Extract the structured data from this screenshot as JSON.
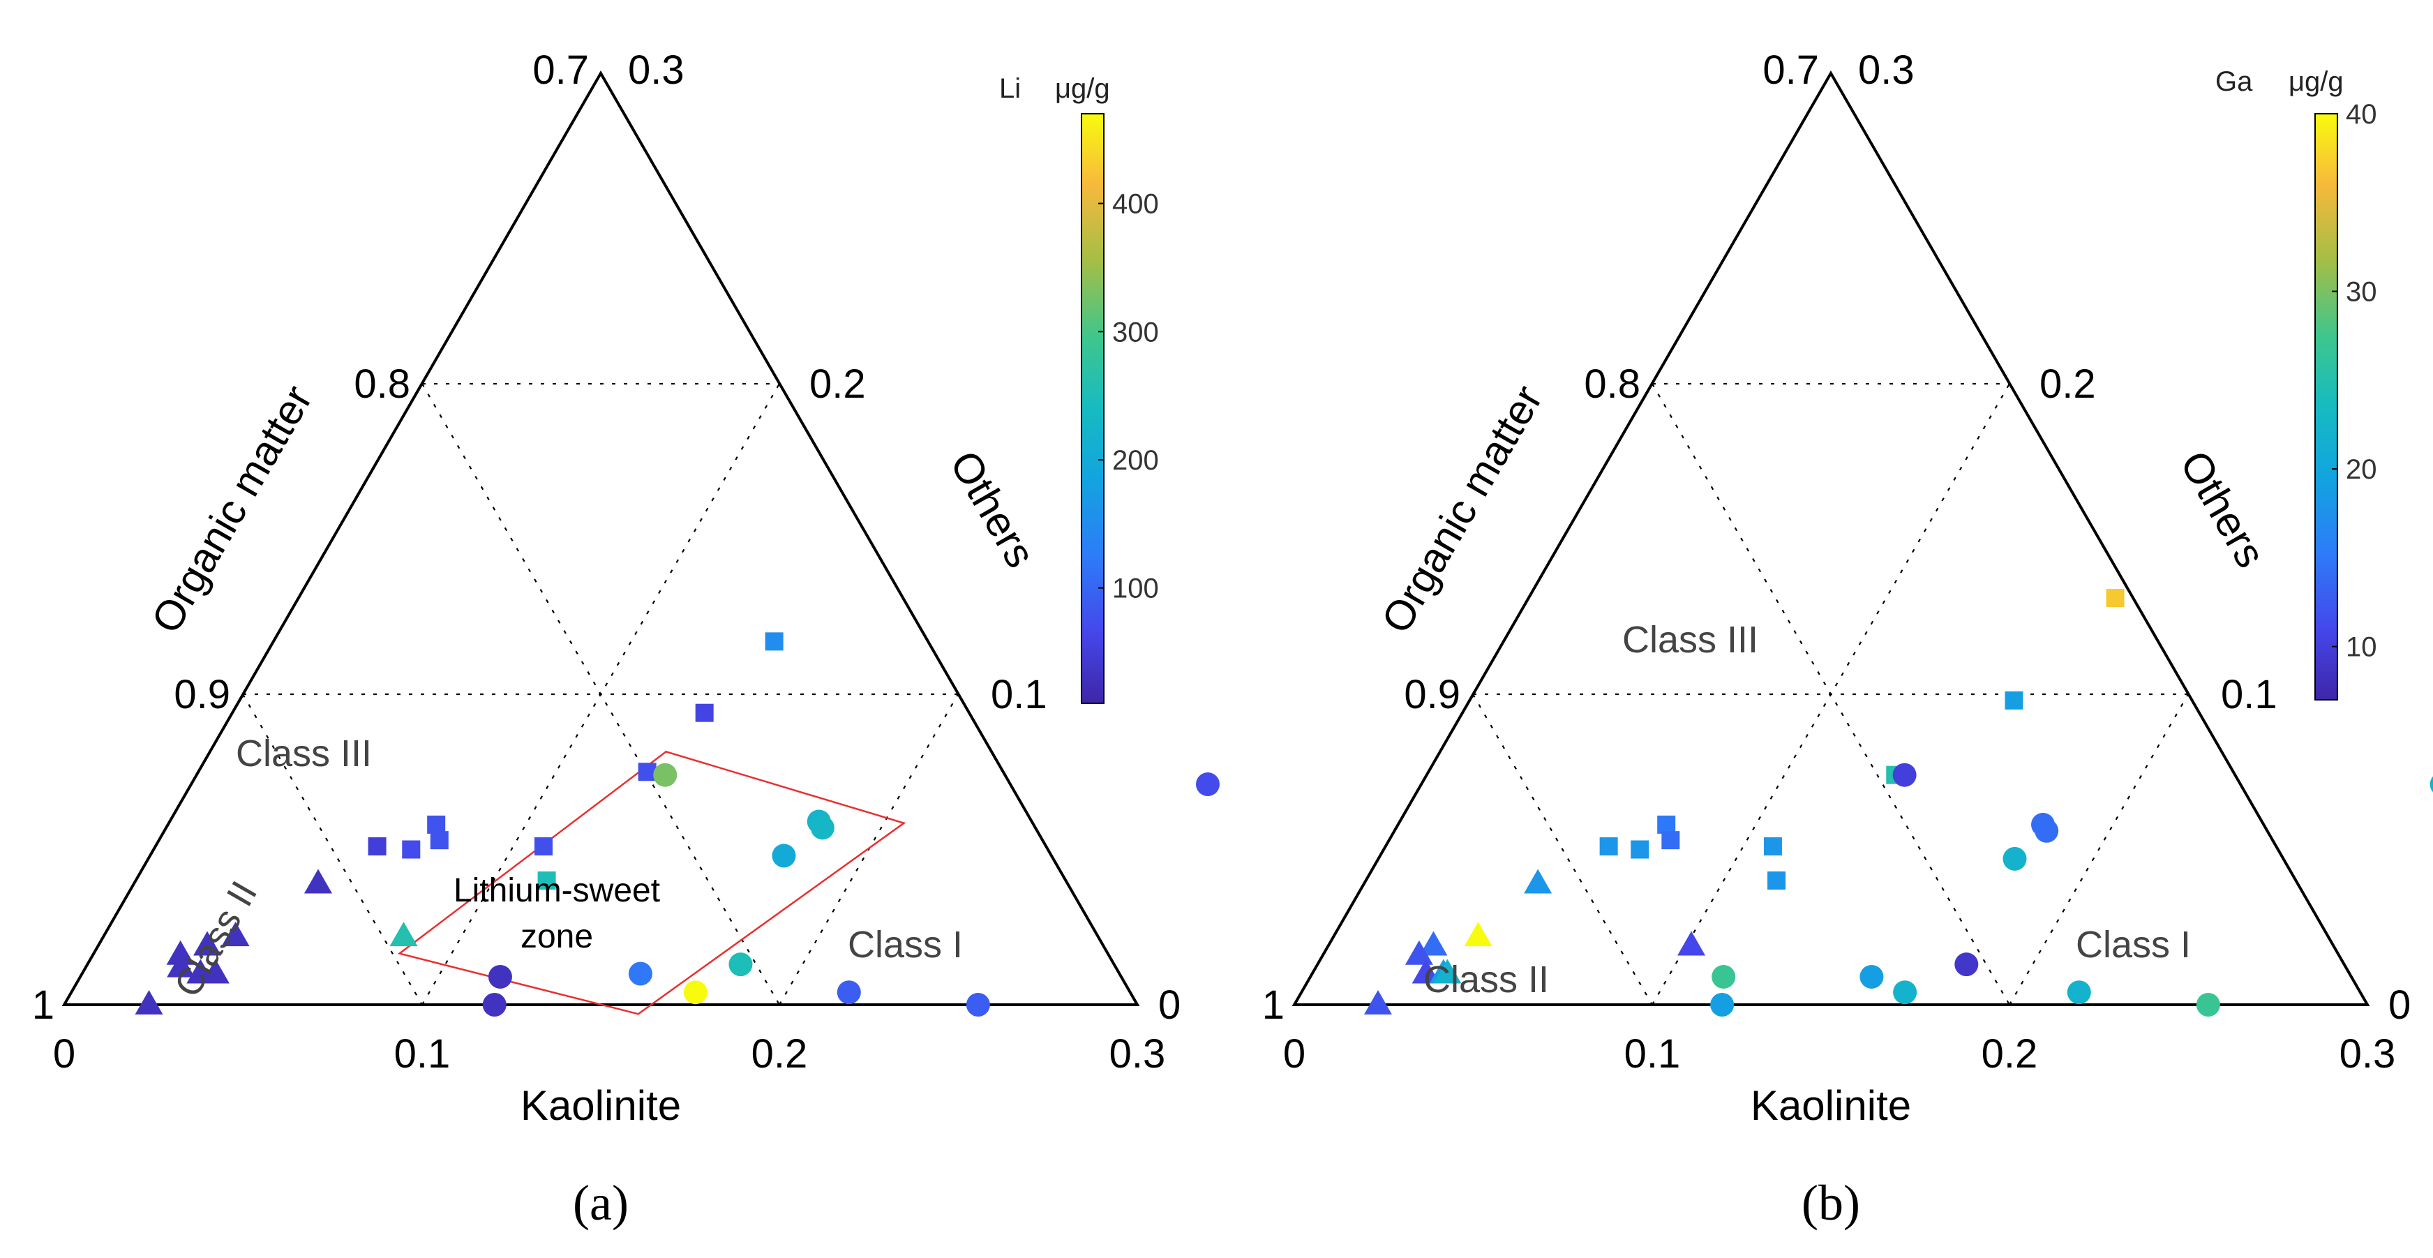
{
  "chart_data": [
    {
      "type": "scatter",
      "subtype": "ternary",
      "panel_label": "(a)",
      "axes": {
        "bottom": {
          "label": "Kaolinite",
          "ticks": [
            "0",
            "0.1",
            "0.2",
            "0.3"
          ]
        },
        "left": {
          "label": "Organic matter",
          "ticks": [
            "1",
            "0.9",
            "0.8",
            "0.7"
          ]
        },
        "right": {
          "label": "Others",
          "ticks": [
            "0",
            "0.1",
            "0.2",
            "0.3"
          ]
        }
      },
      "colorbar": {
        "element": "Li",
        "unit": "μg/g",
        "min": 10,
        "max": 470,
        "ticks": [
          100,
          200,
          300,
          400
        ]
      },
      "classes": [
        {
          "label": "Class I",
          "x": 0.24,
          "y": 0.018
        },
        {
          "label": "Class II",
          "x": 0.065,
          "y": 0.0,
          "rotated": true
        },
        {
          "label": "Class III",
          "x": 0.074,
          "y": 0.072
        }
      ],
      "zone": {
        "label_lines": [
          "Lithium-sweet",
          "zone"
        ],
        "color": "#e8302f",
        "vertices": [
          [
            0.1275,
            0.0815
          ],
          [
            0.2055,
            0.0585
          ],
          [
            0.162,
            -0.003
          ],
          [
            0.0855,
            0.0165
          ]
        ]
      },
      "series": [
        {
          "name": "squares",
          "marker": "square",
          "points": [
            {
              "x": 0.14,
              "y": 0.117,
              "value": 150
            },
            {
              "x": 0.132,
              "y": 0.094,
              "value": 60
            },
            {
              "x": 0.1255,
              "y": 0.075,
              "value": 75
            },
            {
              "x": 0.075,
              "y": 0.058,
              "value": 80
            },
            {
              "x": 0.062,
              "y": 0.051,
              "value": 50
            },
            {
              "x": 0.072,
              "y": 0.05,
              "value": 70
            },
            {
              "x": 0.0784,
              "y": 0.053,
              "value": 80
            },
            {
              "x": 0.1085,
              "y": 0.051,
              "value": 75
            },
            {
              "x": 0.1149,
              "y": 0.04,
              "value": 250
            }
          ]
        },
        {
          "name": "circles",
          "marker": "circle",
          "points": [
            {
              "x": 0.131,
              "y": 0.074,
              "value": 330
            },
            {
              "x": 0.1815,
              "y": 0.059,
              "value": 220
            },
            {
              "x": 0.1835,
              "y": 0.057,
              "value": 230
            },
            {
              "x": 0.1772,
              "y": 0.048,
              "value": 200
            },
            {
              "x": 0.2842,
              "y": 0.071,
              "value": 70
            },
            {
              "x": 0.1826,
              "y": 0.013,
              "value": 250
            },
            {
              "x": 0.1561,
              "y": 0.01,
              "value": 120
            },
            {
              "x": 0.1745,
              "y": 0.004,
              "value": 470
            },
            {
              "x": 0.1174,
              "y": 0.009,
              "value": 30
            },
            {
              "x": 0.1203,
              "y": 0.0,
              "value": 30
            },
            {
              "x": 0.2174,
              "y": 0.004,
              "value": 90
            },
            {
              "x": 0.2555,
              "y": 0.0,
              "value": 90
            }
          ]
        },
        {
          "name": "triangles",
          "marker": "triangle",
          "points": [
            {
              "x": 0.0515,
              "y": 0.039,
              "value": 30
            },
            {
              "x": 0.0369,
              "y": 0.022,
              "value": 30
            },
            {
              "x": 0.0305,
              "y": 0.019,
              "value": 30
            },
            {
              "x": 0.0245,
              "y": 0.016,
              "value": 30
            },
            {
              "x": 0.0266,
              "y": 0.012,
              "value": 30
            },
            {
              "x": 0.0331,
              "y": 0.01,
              "value": 30
            },
            {
              "x": 0.0373,
              "y": 0.01,
              "value": 30
            },
            {
              "x": 0.0237,
              "y": 0.0,
              "value": 30
            },
            {
              "x": 0.0839,
              "y": 0.022,
              "value": 260
            }
          ]
        }
      ]
    },
    {
      "type": "scatter",
      "subtype": "ternary",
      "panel_label": "(b)",
      "axes": {
        "bottom": {
          "label": "Kaolinite",
          "ticks": [
            "0",
            "0.1",
            "0.2",
            "0.3"
          ]
        },
        "left": {
          "label": "Organic matter",
          "ticks": [
            "1",
            "0.9",
            "0.8",
            "0.7"
          ]
        },
        "right": {
          "label": "Others",
          "ticks": [
            "0",
            "0.1",
            "0.2",
            "0.3"
          ]
        }
      },
      "colorbar": {
        "element": "Ga",
        "unit": "μg/g",
        "min": 7,
        "max": 40,
        "ticks": [
          10,
          20,
          30,
          40
        ]
      },
      "classes": [
        {
          "label": "Class I",
          "x": 0.24,
          "y": 0.018
        },
        {
          "label": "Class II",
          "x": 0.041,
          "y": 0.0
        },
        {
          "label": "Class III",
          "x": 0.114,
          "y": 0.117
        }
      ],
      "series": [
        {
          "name": "squares",
          "marker": "square",
          "points": [
            {
              "x": 0.164,
              "y": 0.131,
              "value": 37
            },
            {
              "x": 0.1522,
              "y": 0.098,
              "value": 19
            },
            {
              "x": 0.131,
              "y": 0.074,
              "value": 25
            },
            {
              "x": 0.075,
              "y": 0.058,
              "value": 15
            },
            {
              "x": 0.0624,
              "y": 0.051,
              "value": 18
            },
            {
              "x": 0.0716,
              "y": 0.05,
              "value": 18
            },
            {
              "x": 0.0787,
              "y": 0.053,
              "value": 14
            },
            {
              "x": 0.1083,
              "y": 0.051,
              "value": 18
            },
            {
              "x": 0.1148,
              "y": 0.04,
              "value": 18
            }
          ]
        },
        {
          "name": "circles",
          "marker": "circle",
          "points": [
            {
              "x": 0.1336,
              "y": 0.074,
              "value": 10
            },
            {
              "x": 0.1803,
              "y": 0.058,
              "value": 14
            },
            {
              "x": 0.1823,
              "y": 0.056,
              "value": 14
            },
            {
              "x": 0.1779,
              "y": 0.047,
              "value": 22
            },
            {
              "x": 0.2853,
              "y": 0.071,
              "value": 22
            },
            {
              "x": 0.1814,
              "y": 0.013,
              "value": 9
            },
            {
              "x": 0.1569,
              "y": 0.009,
              "value": 19
            },
            {
              "x": 0.1687,
              "y": 0.004,
              "value": 22
            },
            {
              "x": 0.1155,
              "y": 0.009,
              "value": 27
            },
            {
              "x": 0.1196,
              "y": 0.0,
              "value": 19
            },
            {
              "x": 0.2174,
              "y": 0.004,
              "value": 22
            },
            {
              "x": 0.2555,
              "y": 0.0,
              "value": 27
            }
          ]
        },
        {
          "name": "triangles",
          "marker": "triangle",
          "points": [
            {
              "x": 0.0486,
              "y": 0.039,
              "value": 18
            },
            {
              "x": 0.0404,
              "y": 0.022,
              "value": 40
            },
            {
              "x": 0.0294,
              "y": 0.019,
              "value": 14
            },
            {
              "x": 0.0269,
              "y": 0.016,
              "value": 12
            },
            {
              "x": 0.0318,
              "y": 0.01,
              "value": 11
            },
            {
              "x": 0.0367,
              "y": 0.01,
              "value": 19
            },
            {
              "x": 0.0378,
              "y": 0.01,
              "value": 22
            },
            {
              "x": 0.0234,
              "y": 0.0,
              "value": 12
            },
            {
              "x": 0.1015,
              "y": 0.019,
              "value": 11
            }
          ]
        }
      ]
    }
  ]
}
